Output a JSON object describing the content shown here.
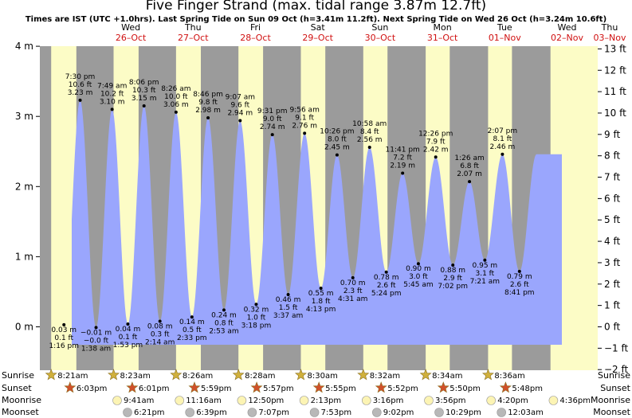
{
  "chart_data": {
    "type": "area",
    "title": "Five Finger Strand (max. tidal range 3.87m 12.7ft)",
    "subtitle": "Times are IST (UTC +1.0hrs). Last Spring Tide on Sun 09 Oct (h=3.41m 11.2ft). Next Spring Tide on Wed 26 Oct (h=3.24m 10.6ft)",
    "days": [
      {
        "dow": "Wed",
        "date": "26–Oct"
      },
      {
        "dow": "Thu",
        "date": "27–Oct"
      },
      {
        "dow": "Fri",
        "date": "28–Oct"
      },
      {
        "dow": "Sat",
        "date": "29–Oct"
      },
      {
        "dow": "Sun",
        "date": "30–Oct"
      },
      {
        "dow": "Mon",
        "date": "31–Oct"
      },
      {
        "dow": "Tue",
        "date": "01–Nov"
      },
      {
        "dow": "Wed",
        "date": "02–Nov"
      },
      {
        "dow": "Thu",
        "date": "03–Nov"
      }
    ],
    "y_left": {
      "unit": "m",
      "ticks": [
        "4 m",
        "3 m",
        "2 m",
        "1 m",
        "0 m"
      ],
      "values": [
        4,
        3,
        2,
        1,
        0
      ],
      "range": [
        -0.6,
        4.0
      ]
    },
    "y_right": {
      "unit": "ft",
      "ticks": [
        "13 ft",
        "12 ft",
        "11 ft",
        "10 ft",
        "9 ft",
        "8 ft",
        "7 ft",
        "6 ft",
        "5 ft",
        "4 ft",
        "3 ft",
        "2 ft",
        "1 ft",
        "0 ft",
        "−1 ft",
        "−2 ft"
      ],
      "values": [
        13,
        12,
        11,
        10,
        9,
        8,
        7,
        6,
        5,
        4,
        3,
        2,
        1,
        0,
        -1,
        -2
      ]
    },
    "tides": [
      {
        "type": "high",
        "day": 0,
        "time": "7:30 pm",
        "h_ft": "10.6 ft",
        "h_m": "3.23 m",
        "h": 3.23
      },
      {
        "type": "low",
        "day": 0,
        "time": "1:16 pm",
        "h_ft": "0.1 ft",
        "h_m": "0.03 m",
        "h": 0.03
      },
      {
        "type": "high",
        "day": 1,
        "time": "7:49 am",
        "h_ft": "10.2 ft",
        "h_m": "3.10 m",
        "h": 3.1
      },
      {
        "type": "low",
        "day": 1,
        "time": "1:38 am",
        "h_ft": "−0.0 ft",
        "h_m": "−0.01 m",
        "h": -0.01
      },
      {
        "type": "high",
        "day": 1,
        "time": "8:06 pm",
        "h_ft": "10.3 ft",
        "h_m": "3.15 m",
        "h": 3.15
      },
      {
        "type": "low",
        "day": 1,
        "time": "1:53 pm",
        "h_ft": "0.1 ft",
        "h_m": "0.04 m",
        "h": 0.04
      },
      {
        "type": "high",
        "day": 2,
        "time": "8:26 am",
        "h_ft": "10.0 ft",
        "h_m": "3.06 m",
        "h": 3.06
      },
      {
        "type": "low",
        "day": 2,
        "time": "2:14 am",
        "h_ft": "0.3 ft",
        "h_m": "0.08 m",
        "h": 0.08
      },
      {
        "type": "high",
        "day": 2,
        "time": "8:46 pm",
        "h_ft": "9.8 ft",
        "h_m": "2.98 m",
        "h": 2.98
      },
      {
        "type": "low",
        "day": 2,
        "time": "2:33 pm",
        "h_ft": "0.5 ft",
        "h_m": "0.14 m",
        "h": 0.14
      },
      {
        "type": "high",
        "day": 3,
        "time": "9:07 am",
        "h_ft": "9.6 ft",
        "h_m": "2.94 m",
        "h": 2.94
      },
      {
        "type": "low",
        "day": 3,
        "time": "2:53 am",
        "h_ft": "0.8 ft",
        "h_m": "0.24 m",
        "h": 0.24
      },
      {
        "type": "high",
        "day": 3,
        "time": "9:31 pm",
        "h_ft": "9.0 ft",
        "h_m": "2.74 m",
        "h": 2.74
      },
      {
        "type": "low",
        "day": 3,
        "time": "3:18 pm",
        "h_ft": "1.0 ft",
        "h_m": "0.32 m",
        "h": 0.32
      },
      {
        "type": "high",
        "day": 4,
        "time": "9:56 am",
        "h_ft": "9.1 ft",
        "h_m": "2.76 m",
        "h": 2.76
      },
      {
        "type": "low",
        "day": 4,
        "time": "3:37 am",
        "h_ft": "1.5 ft",
        "h_m": "0.46 m",
        "h": 0.46
      },
      {
        "type": "high",
        "day": 4,
        "time": "10:26 pm",
        "h_ft": "8.0 ft",
        "h_m": "2.45 m",
        "h": 2.45
      },
      {
        "type": "low",
        "day": 4,
        "time": "4:13 pm",
        "h_ft": "1.8 ft",
        "h_m": "0.55 m",
        "h": 0.55
      },
      {
        "type": "high",
        "day": 5,
        "time": "10:58 am",
        "h_ft": "8.4 ft",
        "h_m": "2.56 m",
        "h": 2.56
      },
      {
        "type": "low",
        "day": 5,
        "time": "4:31 am",
        "h_ft": "2.3 ft",
        "h_m": "0.70 m",
        "h": 0.7
      },
      {
        "type": "high",
        "day": 5,
        "time": "11:41 pm",
        "h_ft": "7.2 ft",
        "h_m": "2.19 m",
        "h": 2.19
      },
      {
        "type": "low",
        "day": 5,
        "time": "5:24 pm",
        "h_ft": "2.6 ft",
        "h_m": "0.78 m",
        "h": 0.78
      },
      {
        "type": "high",
        "day": 6,
        "time": "12:26 pm",
        "h_ft": "7.9 ft",
        "h_m": "2.42 m",
        "h": 2.42
      },
      {
        "type": "low",
        "day": 6,
        "time": "5:45 am",
        "h_ft": "3.0 ft",
        "h_m": "0.90 m",
        "h": 0.9
      },
      {
        "type": "low",
        "day": 6,
        "time": "7:02 pm",
        "h_ft": "2.9 ft",
        "h_m": "0.88 m",
        "h": 0.88
      },
      {
        "type": "high",
        "day": 7,
        "time": "1:26 am",
        "h_ft": "6.8 ft",
        "h_m": "2.07 m",
        "h": 2.07
      },
      {
        "type": "high",
        "day": 7,
        "time": "2:07 pm",
        "h_ft": "8.1 ft",
        "h_m": "2.46 m",
        "h": 2.46
      },
      {
        "type": "low",
        "day": 7,
        "time": "7:21 am",
        "h_ft": "3.1 ft",
        "h_m": "0.95 m",
        "h": 0.95
      },
      {
        "type": "low",
        "day": 7,
        "time": "8:41 pm",
        "h_ft": "2.6 ft",
        "h_m": "0.79 m",
        "h": 0.79
      }
    ],
    "almanac": {
      "row_labels": [
        "Sunrise",
        "Sunset",
        "Moonrise",
        "Moonset"
      ],
      "sunrise": [
        "8:21am",
        "8:23am",
        "8:26am",
        "8:28am",
        "8:30am",
        "8:32am",
        "8:34am",
        "8:36am"
      ],
      "sunset": [
        "6:03pm",
        "6:01pm",
        "5:59pm",
        "5:57pm",
        "5:55pm",
        "5:52pm",
        "5:50pm",
        "5:48pm"
      ],
      "moonrise": [
        "9:41am",
        "11:16am",
        "12:50pm",
        "2:13pm",
        "3:16pm",
        "3:56pm",
        "4:20pm",
        "4:36pm"
      ],
      "moonset": [
        "6:21pm",
        "6:39pm",
        "7:07pm",
        "7:53pm",
        "9:02pm",
        "10:29pm",
        "12:03am",
        ""
      ]
    },
    "colors": {
      "water": "#9aa6fd",
      "day": "#fcfcc6",
      "night": "#9b9b9b",
      "star": "#d0b03c",
      "sun_red": "#d0502a",
      "moon": "#fcf4b4",
      "moonset": "#b8b8b8"
    }
  }
}
